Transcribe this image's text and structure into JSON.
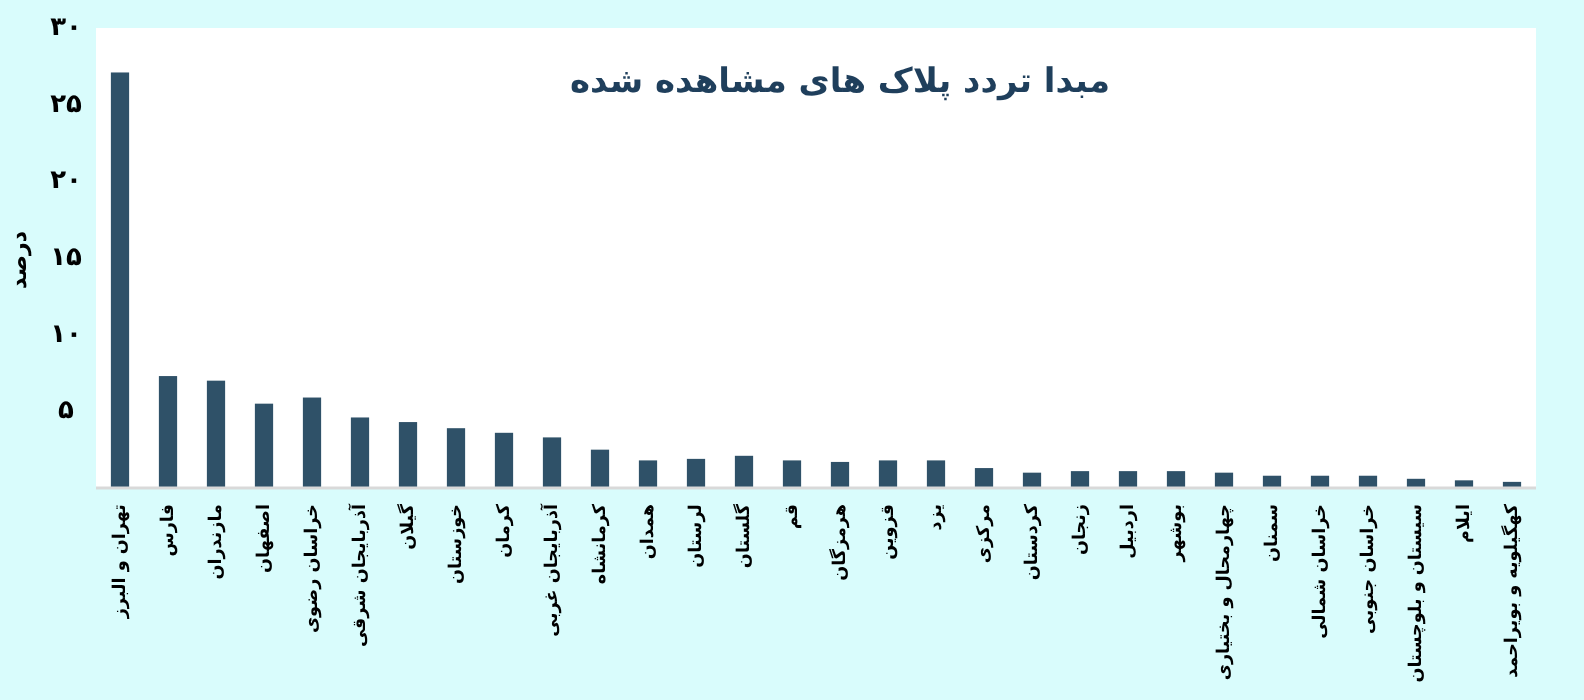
{
  "chart_data": {
    "type": "bar",
    "title": "مبدا تردد پلاک های مشاهده شده",
    "ylabel": "درصد",
    "categories": [
      "تهران و البرز",
      "فارس",
      "مازندران",
      "اصفهان",
      "خراسان رضوی",
      "آذربایجان شرقی",
      "گیلان",
      "خوزستان",
      "کرمان",
      "آذربایجان غربی",
      "کرمانشاه",
      "همدان",
      "لرستان",
      "گلستان",
      "قم",
      "هرمزگان",
      "قزوین",
      "یزد",
      "مرکزی",
      "کردستان",
      "زنجان",
      "اردبیل",
      "بوشهر",
      "چهارمحال و بختیاری",
      "سمنان",
      "خراسان شمالی",
      "خراسان جنوبی",
      "سیستان و بلوچستان",
      "ایلام",
      "کهگیلویه و بویراحمد"
    ],
    "values": [
      27.1,
      7.3,
      7.0,
      5.5,
      5.9,
      4.6,
      4.3,
      3.9,
      3.6,
      3.3,
      2.5,
      1.8,
      1.9,
      2.1,
      1.8,
      1.7,
      1.8,
      1.8,
      1.3,
      1.0,
      1.1,
      1.1,
      1.1,
      1.0,
      0.8,
      0.8,
      0.8,
      0.6,
      0.5,
      0.4
    ],
    "color": "#2f5168",
    "ylim": [
      0,
      30
    ],
    "yticks": [
      {
        "value": 5,
        "label": "۵"
      },
      {
        "value": 10,
        "label": "۱۰"
      },
      {
        "value": 15,
        "label": "۱۵"
      },
      {
        "value": 20,
        "label": "۲۰"
      },
      {
        "value": 25,
        "label": "۲۵"
      },
      {
        "value": 30,
        "label": "۳۰"
      }
    ],
    "grid": false
  }
}
